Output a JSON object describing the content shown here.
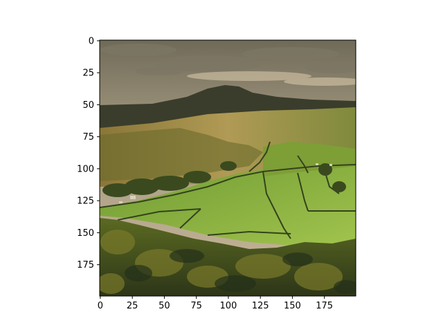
{
  "chart_data": {
    "type": "image",
    "title": "",
    "xlabel": "",
    "ylabel": "",
    "image_extent": {
      "width": 200,
      "height": 200
    },
    "xlim": [
      -0.5,
      199.5
    ],
    "ylim": [
      199.5,
      -0.5
    ],
    "x_axis_inverted": false,
    "y_axis_inverted": true,
    "grid": false,
    "xticks": [
      0,
      25,
      50,
      75,
      100,
      125,
      150,
      175
    ],
    "yticks": [
      0,
      25,
      50,
      75,
      100,
      125,
      150,
      175
    ],
    "xtick_labels": [
      "0",
      "25",
      "50",
      "75",
      "100",
      "125",
      "150",
      "175"
    ],
    "ytick_labels": [
      "0",
      "25",
      "50",
      "75",
      "100",
      "125",
      "150",
      "175"
    ],
    "image_content": "landscape photo: cloudy sky, distant dark hill, green fields with dry-stone walls, trees in foreground"
  },
  "colors": {
    "sky_light": "#c4b49a",
    "sky_dark": "#8b8068",
    "hill_far": "#3d3f2c",
    "moor": "#9a8646",
    "field_green": "#7aa23a",
    "field_bright": "#96bf45",
    "wall": "#3c4a22",
    "trees_dark": "#2f3a1a",
    "trees_light": "#6e7a2c",
    "axis": "#000000"
  }
}
